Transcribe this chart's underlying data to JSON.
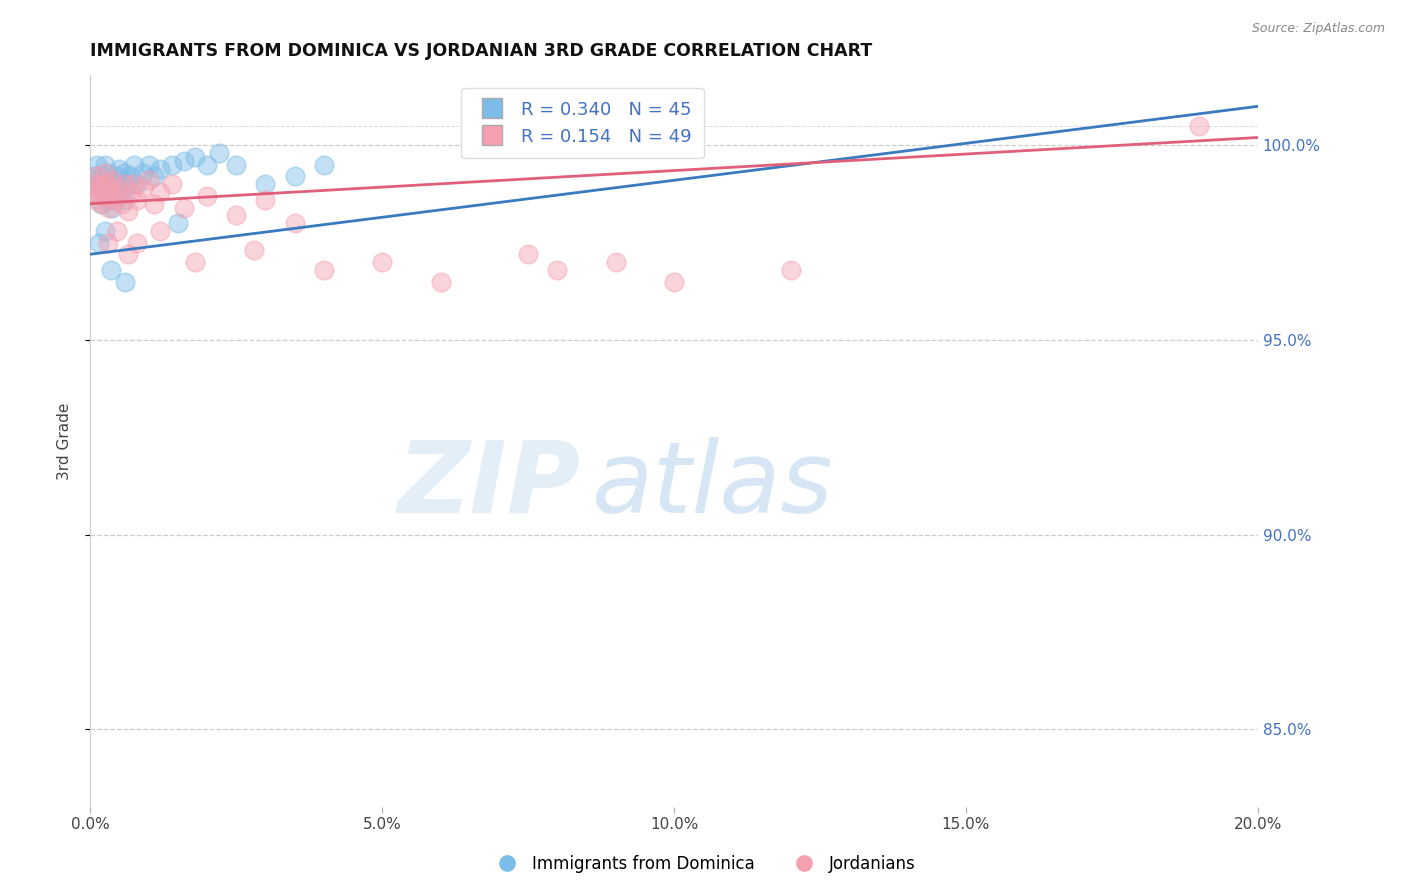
{
  "title": "IMMIGRANTS FROM DOMINICA VS JORDANIAN 3RD GRADE CORRELATION CHART",
  "source": "Source: ZipAtlas.com",
  "ylabel": "3rd Grade",
  "xlim": [
    0.0,
    20.0
  ],
  "ylim": [
    83.0,
    101.8
  ],
  "yticks": [
    85.0,
    90.0,
    95.0,
    100.0
  ],
  "xticks": [
    0.0,
    5.0,
    10.0,
    15.0,
    20.0
  ],
  "xtick_labels": [
    "0.0%",
    "5.0%",
    "10.0%",
    "15.0%",
    "20.0%"
  ],
  "ytick_labels": [
    "85.0%",
    "90.0%",
    "95.0%",
    "100.0%"
  ],
  "blue_R": 0.34,
  "blue_N": 45,
  "pink_R": 0.154,
  "pink_N": 49,
  "blue_color": "#7bbce8",
  "pink_color": "#f4a0b0",
  "blue_line_color": "#3a7abf",
  "pink_line_color": "#e0607a",
  "legend_label_blue": "Immigrants from Dominica",
  "legend_label_pink": "Jordanians",
  "watermark_zip": "ZIP",
  "watermark_atlas": "atlas",
  "blue_scatter_x": [
    0.05,
    0.08,
    0.1,
    0.12,
    0.15,
    0.18,
    0.2,
    0.22,
    0.25,
    0.28,
    0.3,
    0.32,
    0.35,
    0.38,
    0.4,
    0.42,
    0.45,
    0.48,
    0.5,
    0.52,
    0.55,
    0.58,
    0.6,
    0.65,
    0.7,
    0.75,
    0.8,
    0.9,
    1.0,
    1.1,
    1.2,
    1.4,
    1.6,
    1.8,
    2.0,
    2.2,
    2.5,
    3.0,
    3.5,
    4.0,
    0.15,
    0.25,
    0.35,
    0.6,
    1.5
  ],
  "blue_scatter_y": [
    99.0,
    99.2,
    98.8,
    99.5,
    99.0,
    98.5,
    99.2,
    98.8,
    99.5,
    99.0,
    99.3,
    98.6,
    99.1,
    98.4,
    99.0,
    98.7,
    99.2,
    98.9,
    99.4,
    99.1,
    98.8,
    99.3,
    98.6,
    99.0,
    99.2,
    99.5,
    99.0,
    99.3,
    99.5,
    99.2,
    99.4,
    99.5,
    99.6,
    99.7,
    99.5,
    99.8,
    99.5,
    99.0,
    99.2,
    99.5,
    97.5,
    97.8,
    96.8,
    96.5,
    98.0
  ],
  "pink_scatter_x": [
    0.05,
    0.08,
    0.1,
    0.12,
    0.15,
    0.18,
    0.2,
    0.22,
    0.25,
    0.28,
    0.3,
    0.32,
    0.35,
    0.38,
    0.4,
    0.45,
    0.5,
    0.55,
    0.6,
    0.65,
    0.7,
    0.75,
    0.8,
    0.9,
    1.0,
    1.1,
    1.2,
    1.4,
    1.6,
    2.0,
    2.5,
    3.0,
    3.5,
    0.3,
    0.45,
    0.65,
    0.8,
    1.2,
    1.8,
    2.8,
    4.0,
    5.0,
    6.0,
    7.5,
    8.0,
    9.0,
    10.0,
    12.0,
    19.0
  ],
  "pink_scatter_y": [
    98.8,
    99.0,
    98.6,
    99.2,
    98.8,
    99.0,
    98.5,
    98.9,
    99.3,
    98.7,
    99.0,
    98.4,
    98.8,
    99.1,
    98.6,
    98.9,
    98.7,
    98.5,
    99.0,
    98.3,
    98.8,
    99.0,
    98.6,
    98.9,
    99.1,
    98.5,
    98.8,
    99.0,
    98.4,
    98.7,
    98.2,
    98.6,
    98.0,
    97.5,
    97.8,
    97.2,
    97.5,
    97.8,
    97.0,
    97.3,
    96.8,
    97.0,
    96.5,
    97.2,
    96.8,
    97.0,
    96.5,
    96.8,
    100.5
  ]
}
